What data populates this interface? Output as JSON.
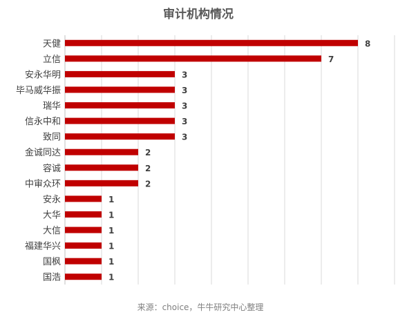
{
  "chart_data": {
    "type": "bar",
    "orientation": "horizontal",
    "title": "审计机构情况",
    "source": "来源：choice，牛牛研究中心整理",
    "categories": [
      "天健",
      "立信",
      "安永华明",
      "毕马威华振",
      "瑞华",
      "信永中和",
      "致同",
      "金诚同达",
      "容诚",
      "中审众环",
      "安永",
      "大华",
      "大信",
      "福建华兴",
      "国枫",
      "国浩"
    ],
    "values": [
      8,
      7,
      3,
      3,
      3,
      3,
      3,
      2,
      2,
      2,
      1,
      1,
      1,
      1,
      1,
      1
    ],
    "xlim": [
      0,
      9
    ],
    "grid": true,
    "data_labels": true,
    "colors": {
      "bar": "#c00000",
      "grid": "#d9d9d9",
      "axis": "#bfbfbf",
      "text": "#404040",
      "title": "#595959",
      "source": "#7f7f7f"
    }
  }
}
